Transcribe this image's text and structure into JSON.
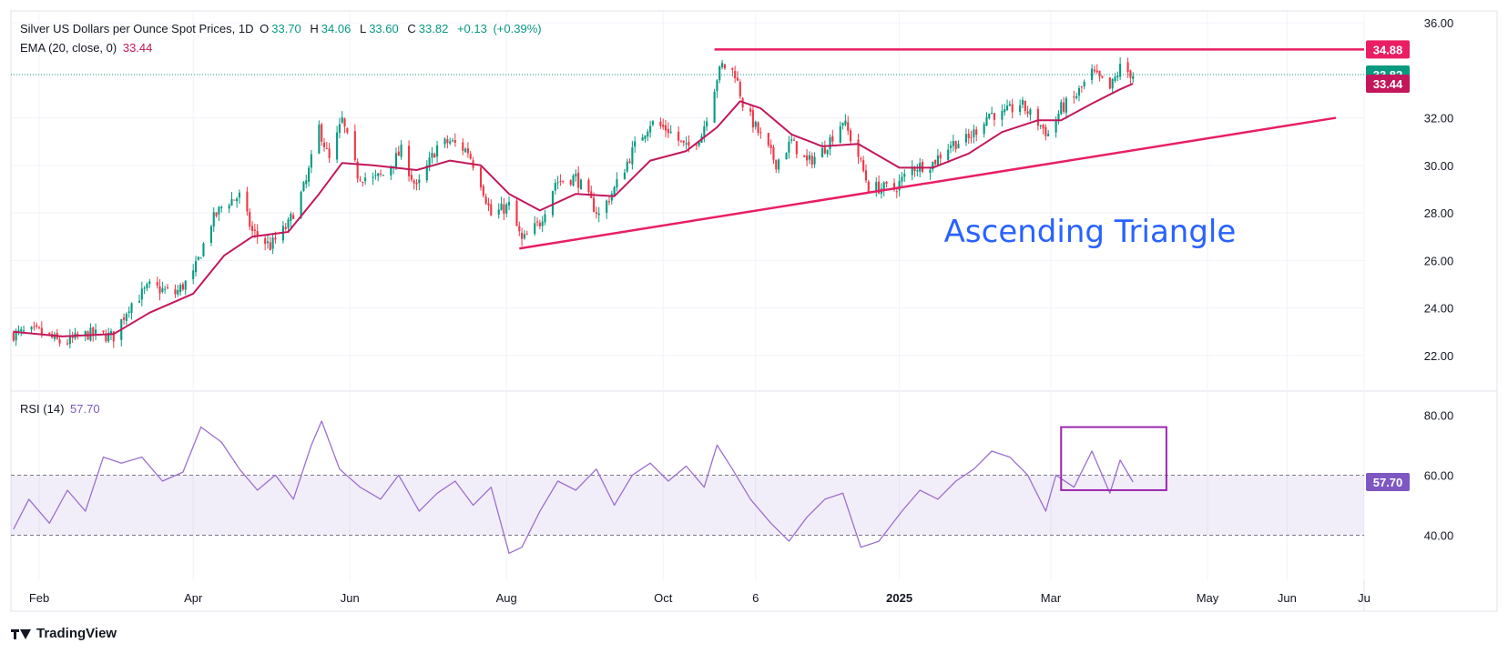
{
  "header": {
    "symbol": "Silver US Dollars per Ounce Spot Prices, 1D",
    "open_label": "O",
    "open": "33.70",
    "high_label": "H",
    "high": "34.06",
    "low_label": "L",
    "low": "33.60",
    "close_label": "C",
    "close": "33.82",
    "change": "+0.13",
    "change_pct": "(+0.39%)"
  },
  "ema_legend": {
    "label": "EMA (20, close, 0)",
    "value": "33.44"
  },
  "rsi_legend": {
    "label": "RSI (14)",
    "value": "57.70"
  },
  "annotation": {
    "text": "Ascending Triangle"
  },
  "brand": {
    "name": "TradingView"
  },
  "colors": {
    "up": "#089981",
    "down": "#f23645",
    "ema": "#c2185b",
    "line": "#e91e63",
    "rsi": "#9c6fd0",
    "annotation": "#2962ff",
    "box": "#9c27b0"
  },
  "chart_data": [
    {
      "type": "candlestick",
      "ylim": [
        20.5,
        36.5
      ],
      "y_ticks": [
        "36.00",
        "32.00",
        "30.00",
        "28.00",
        "26.00",
        "24.00",
        "22.00"
      ],
      "x_ticks": [
        {
          "label": "Feb",
          "date": "2024-02-01"
        },
        {
          "label": "Apr",
          "date": "2024-04-01"
        },
        {
          "label": "Jun",
          "date": "2024-06-01"
        },
        {
          "label": "Aug",
          "date": "2024-08-01"
        },
        {
          "label": "Oct",
          "date": "2024-10-01"
        },
        {
          "label": "6",
          "date": "2024-11-06"
        },
        {
          "label": "2025",
          "date": "2025-01-01",
          "bold": true
        },
        {
          "label": "Mar",
          "date": "2025-03-01"
        },
        {
          "label": "May",
          "date": "2025-05-01"
        },
        {
          "label": "Jun",
          "date": "2025-06-01"
        },
        {
          "label": "Ju",
          "date": "2025-07-01"
        }
      ],
      "x_range": [
        "2024-01-21",
        "2025-07-01"
      ],
      "price_path": [
        [
          "2024-01-22",
          22.9
        ],
        [
          "2024-02-01",
          23.0
        ],
        [
          "2024-02-10",
          22.5
        ],
        [
          "2024-02-20",
          22.9
        ],
        [
          "2024-03-01",
          22.8
        ],
        [
          "2024-03-07",
          24.1
        ],
        [
          "2024-03-15",
          24.9
        ],
        [
          "2024-03-25",
          24.6
        ],
        [
          "2024-04-01",
          25.4
        ],
        [
          "2024-04-08",
          27.6
        ],
        [
          "2024-04-13",
          28.4
        ],
        [
          "2024-04-19",
          28.7
        ],
        [
          "2024-04-24",
          27.2
        ],
        [
          "2024-05-01",
          26.6
        ],
        [
          "2024-05-08",
          27.5
        ],
        [
          "2024-05-15",
          29.3
        ],
        [
          "2024-05-20",
          31.6
        ],
        [
          "2024-05-24",
          30.2
        ],
        [
          "2024-05-29",
          31.9
        ],
        [
          "2024-06-04",
          29.6
        ],
        [
          "2024-06-10",
          29.4
        ],
        [
          "2024-06-14",
          29.6
        ],
        [
          "2024-06-21",
          30.6
        ],
        [
          "2024-06-27",
          29.0
        ],
        [
          "2024-07-05",
          30.8
        ],
        [
          "2024-07-10",
          31.0
        ],
        [
          "2024-07-17",
          30.6
        ],
        [
          "2024-07-22",
          29.3
        ],
        [
          "2024-07-26",
          27.9
        ],
        [
          "2024-08-02",
          28.3
        ],
        [
          "2024-08-07",
          26.8
        ],
        [
          "2024-08-14",
          27.6
        ],
        [
          "2024-08-20",
          29.3
        ],
        [
          "2024-08-28",
          29.5
        ],
        [
          "2024-09-06",
          27.9
        ],
        [
          "2024-09-12",
          29.0
        ],
        [
          "2024-09-20",
          30.8
        ],
        [
          "2024-09-26",
          31.8
        ],
        [
          "2024-10-03",
          31.5
        ],
        [
          "2024-10-10",
          30.7
        ],
        [
          "2024-10-16",
          31.3
        ],
        [
          "2024-10-22",
          33.7
        ],
        [
          "2024-10-24",
          34.2
        ],
        [
          "2024-10-29",
          33.9
        ],
        [
          "2024-11-01",
          32.6
        ],
        [
          "2024-11-08",
          31.2
        ],
        [
          "2024-11-14",
          30.1
        ],
        [
          "2024-11-20",
          31.0
        ],
        [
          "2024-11-26",
          30.1
        ],
        [
          "2024-12-02",
          30.6
        ],
        [
          "2024-12-10",
          31.9
        ],
        [
          "2024-12-16",
          30.4
        ],
        [
          "2024-12-20",
          29.1
        ],
        [
          "2024-12-30",
          29.0
        ],
        [
          "2025-01-06",
          29.9
        ],
        [
          "2025-01-14",
          30.1
        ],
        [
          "2025-01-21",
          30.9
        ],
        [
          "2025-01-28",
          31.1
        ],
        [
          "2025-02-05",
          32.2
        ],
        [
          "2025-02-10",
          32.1
        ],
        [
          "2025-02-17",
          32.6
        ],
        [
          "2025-02-24",
          31.8
        ],
        [
          "2025-02-28",
          31.3
        ],
        [
          "2025-03-05",
          32.4
        ],
        [
          "2025-03-10",
          32.8
        ],
        [
          "2025-03-17",
          33.9
        ],
        [
          "2025-03-24",
          33.2
        ],
        [
          "2025-03-28",
          34.1
        ],
        [
          "2025-04-02",
          33.82
        ]
      ],
      "ema": {
        "name": "EMA (20, close, 0)",
        "points": [
          [
            "2024-01-22",
            23.0
          ],
          [
            "2024-02-10",
            22.8
          ],
          [
            "2024-03-01",
            22.9
          ],
          [
            "2024-03-15",
            23.8
          ],
          [
            "2024-04-01",
            24.6
          ],
          [
            "2024-04-13",
            26.2
          ],
          [
            "2024-04-24",
            27.0
          ],
          [
            "2024-05-08",
            27.2
          ],
          [
            "2024-05-20",
            28.8
          ],
          [
            "2024-05-29",
            30.1
          ],
          [
            "2024-06-10",
            30.0
          ],
          [
            "2024-06-27",
            29.8
          ],
          [
            "2024-07-10",
            30.2
          ],
          [
            "2024-07-22",
            30.0
          ],
          [
            "2024-08-02",
            28.8
          ],
          [
            "2024-08-14",
            28.1
          ],
          [
            "2024-08-28",
            28.8
          ],
          [
            "2024-09-12",
            28.7
          ],
          [
            "2024-09-26",
            30.2
          ],
          [
            "2024-10-10",
            30.6
          ],
          [
            "2024-10-22",
            31.6
          ],
          [
            "2024-10-31",
            32.7
          ],
          [
            "2024-11-08",
            32.4
          ],
          [
            "2024-11-20",
            31.3
          ],
          [
            "2024-12-02",
            30.8
          ],
          [
            "2024-12-16",
            30.9
          ],
          [
            "2025-01-01",
            29.9
          ],
          [
            "2025-01-14",
            29.9
          ],
          [
            "2025-01-28",
            30.5
          ],
          [
            "2025-02-10",
            31.4
          ],
          [
            "2025-02-24",
            31.9
          ],
          [
            "2025-03-05",
            31.9
          ],
          [
            "2025-03-17",
            32.6
          ],
          [
            "2025-03-28",
            33.2
          ],
          [
            "2025-04-02",
            33.44
          ]
        ]
      },
      "resistance_line": {
        "start": "2024-10-21",
        "end": "2025-07-01",
        "value": 34.88
      },
      "support_line": {
        "start": [
          "2024-08-06",
          26.5
        ],
        "end": [
          "2025-06-20",
          32.0
        ]
      },
      "last_price_line": 33.82,
      "price_labels": [
        {
          "value": "34.88",
          "price": 34.88,
          "color": "#e91e63"
        },
        {
          "value": "33.82",
          "price": 33.82,
          "color": "#089981"
        },
        {
          "value": "33.44",
          "price": 33.44,
          "color": "#c2185b"
        }
      ]
    },
    {
      "type": "line",
      "name": "RSI (14)",
      "ylim": [
        25,
        88
      ],
      "y_ticks": [
        "80.00",
        "60.00",
        "40.00"
      ],
      "band": [
        40,
        60
      ],
      "x": [
        "2024-01-22",
        "2024-01-28",
        "2024-02-05",
        "2024-02-12",
        "2024-02-19",
        "2024-02-26",
        "2024-03-04",
        "2024-03-12",
        "2024-03-20",
        "2024-03-28",
        "2024-04-04",
        "2024-04-12",
        "2024-04-19",
        "2024-04-26",
        "2024-05-03",
        "2024-05-10",
        "2024-05-17",
        "2024-05-21",
        "2024-05-28",
        "2024-06-05",
        "2024-06-13",
        "2024-06-20",
        "2024-06-28",
        "2024-07-05",
        "2024-07-12",
        "2024-07-19",
        "2024-07-26",
        "2024-08-02",
        "2024-08-07",
        "2024-08-14",
        "2024-08-21",
        "2024-08-28",
        "2024-09-05",
        "2024-09-12",
        "2024-09-19",
        "2024-09-26",
        "2024-10-03",
        "2024-10-10",
        "2024-10-17",
        "2024-10-22",
        "2024-10-28",
        "2024-11-04",
        "2024-11-12",
        "2024-11-19",
        "2024-11-26",
        "2024-12-03",
        "2024-12-10",
        "2024-12-17",
        "2024-12-24",
        "2025-01-02",
        "2025-01-09",
        "2025-01-16",
        "2025-01-23",
        "2025-01-30",
        "2025-02-06",
        "2025-02-13",
        "2025-02-20",
        "2025-02-27",
        "2025-03-03",
        "2025-03-10",
        "2025-03-17",
        "2025-03-24",
        "2025-03-28",
        "2025-04-02"
      ],
      "values": [
        42,
        52,
        44,
        55,
        48,
        66,
        64,
        66,
        58,
        61,
        76,
        71,
        62,
        55,
        60,
        52,
        70,
        78,
        62,
        56,
        52,
        60,
        48,
        54,
        58,
        50,
        56,
        34,
        36,
        48,
        58,
        55,
        62,
        50,
        60,
        64,
        58,
        63,
        56,
        70,
        62,
        52,
        44,
        38,
        46,
        52,
        54,
        36,
        38,
        48,
        55,
        52,
        58,
        62,
        68,
        66,
        60,
        48,
        60,
        56,
        68,
        54,
        65,
        57.7
      ]
    }
  ]
}
